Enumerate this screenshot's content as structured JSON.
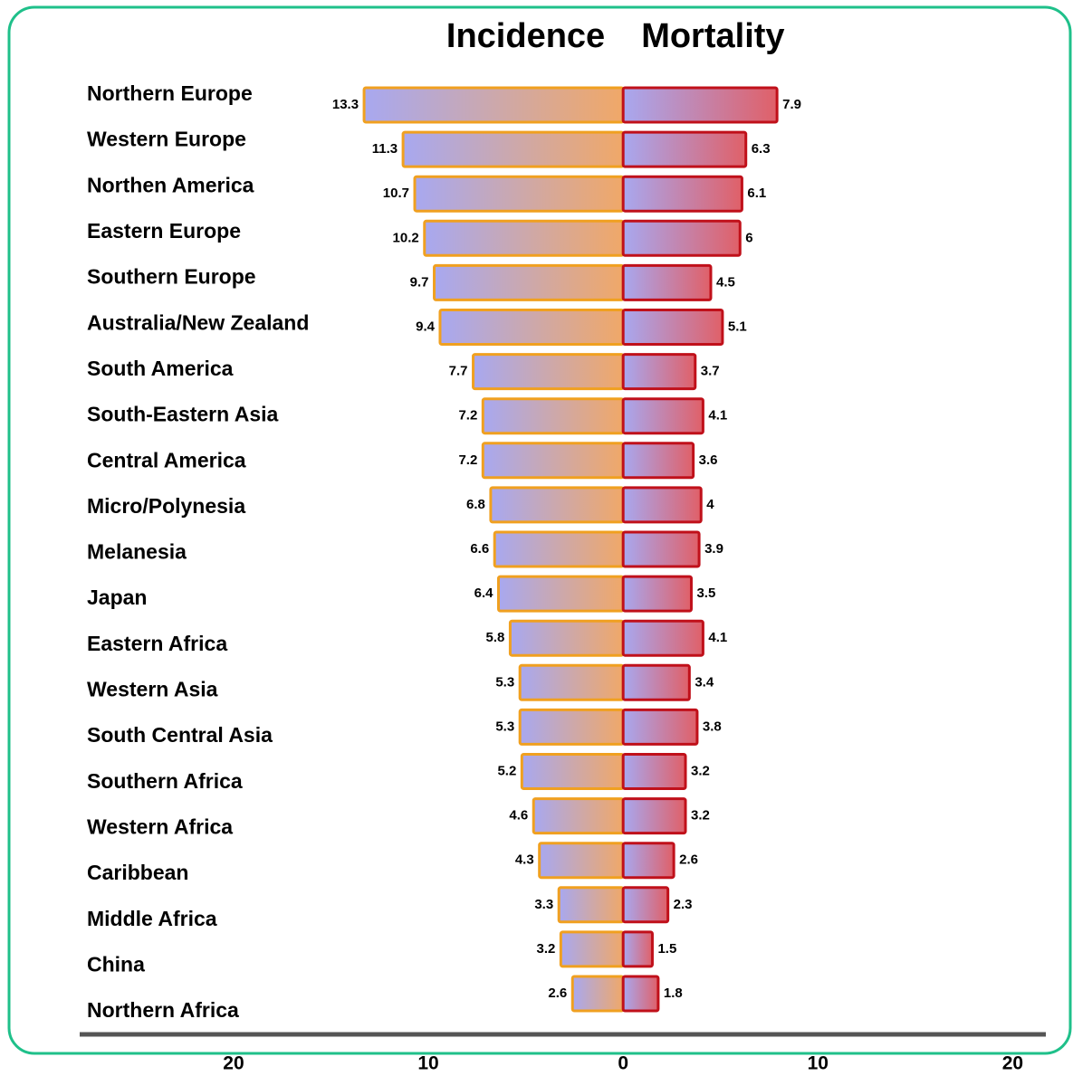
{
  "chart_data": {
    "type": "butterfly",
    "categories": [
      "Northern Europe",
      "Western Europe",
      "Northen America",
      "Eastern Europe",
      "Southern Europe",
      "Australia/New Zealand",
      "South America",
      "South-Eastern Asia",
      "Central America",
      "Micro/Polynesia",
      "Melanesia",
      "Japan",
      "Eastern Africa",
      "Western Asia",
      "South Central Asia",
      "Southern Africa",
      "Western Africa",
      "Caribbean",
      "Middle Africa",
      "China",
      "Northern Africa"
    ],
    "series": [
      {
        "name": "Incidence",
        "color": "#f0a020",
        "values": [
          13.3,
          11.3,
          10.7,
          10.2,
          9.7,
          9.4,
          7.7,
          7.2,
          7.2,
          6.8,
          6.6,
          6.4,
          5.8,
          5.3,
          5.3,
          5.2,
          4.6,
          4.3,
          3.3,
          3.2,
          2.6
        ]
      },
      {
        "name": "Mortality",
        "color": "#c0101a",
        "values": [
          7.9,
          6.3,
          6.1,
          6.0,
          4.5,
          5.1,
          3.7,
          4.1,
          3.6,
          4.0,
          3.9,
          3.5,
          4.1,
          3.4,
          3.8,
          3.2,
          3.2,
          2.6,
          2.3,
          1.5,
          1.8
        ]
      }
    ],
    "xlim": [
      -27.9,
      21.7
    ],
    "xticks": [
      {
        "value": -20,
        "label": "20"
      },
      {
        "value": -10,
        "label": "10"
      },
      0,
      10,
      20
    ]
  }
}
